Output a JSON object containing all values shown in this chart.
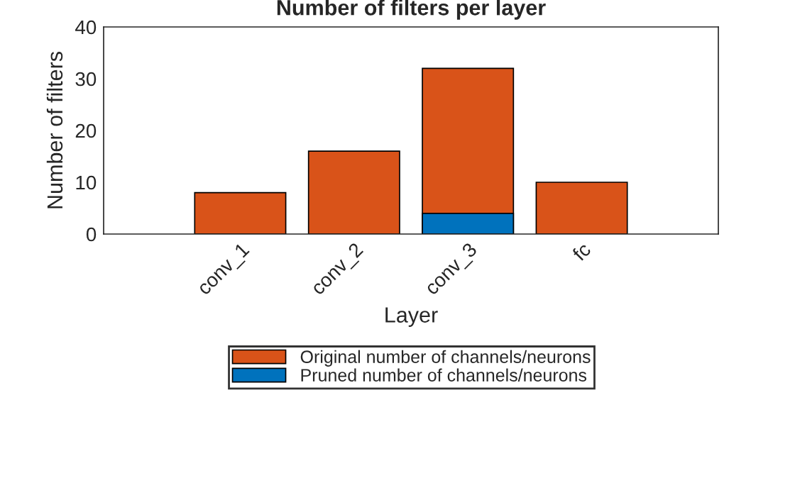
{
  "chart_data": {
    "type": "bar",
    "title": "Number of filters per layer",
    "xlabel": "Layer",
    "ylabel": "Number of filters",
    "categories": [
      "conv_1",
      "conv_2",
      "conv_3",
      "fc"
    ],
    "series": [
      {
        "name": "Original number of channels/neurons",
        "color": "#d95319",
        "values": [
          8,
          16,
          32,
          10
        ]
      },
      {
        "name": "Pruned number of channels/neurons",
        "color": "#0072bd",
        "values": [
          null,
          null,
          4,
          null
        ]
      }
    ],
    "ylim": [
      0,
      40
    ],
    "yticks": [
      0,
      10,
      20,
      30,
      40
    ],
    "grid": false,
    "legend": "bottom"
  }
}
